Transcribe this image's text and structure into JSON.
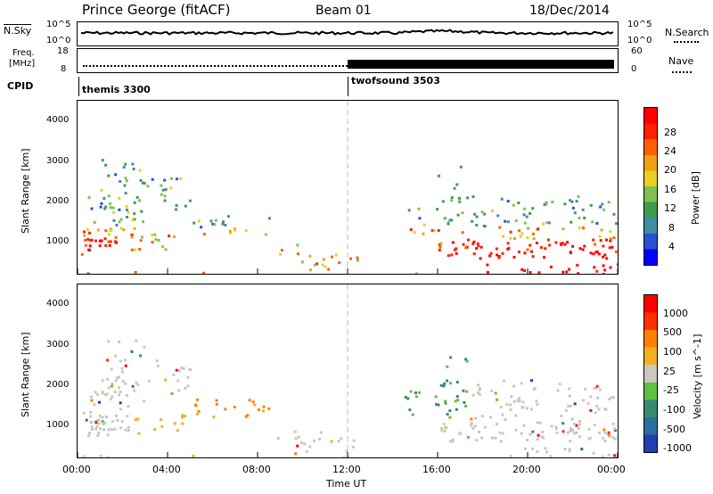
{
  "header": {
    "station": "Prince George (fitACF)",
    "beam": "Beam 01",
    "date": "18/Dec/2014"
  },
  "nsky_panel": {
    "left_label": "N.Sky",
    "right_label": "N.Search",
    "left_ticks": [
      "10^5",
      "10^0"
    ],
    "right_ticks": [
      "10^5",
      "10^0"
    ]
  },
  "freq_panel": {
    "left_label_line1": "Freq.",
    "left_label_line2": "[MHz]",
    "right_label": "Nave",
    "left_ticks": [
      "18",
      "8"
    ],
    "right_ticks": [
      "60",
      "0"
    ]
  },
  "cpid": {
    "label": "CPID",
    "modes": [
      {
        "name": "themis 3300",
        "start_hour": 0
      },
      {
        "name": "twofsound 3503",
        "start_hour": 12
      }
    ]
  },
  "time_axis": {
    "label": "Time UT",
    "ticks": [
      "00:00",
      "04:00",
      "08:00",
      "12:00",
      "16:00",
      "20:00",
      "00:00"
    ]
  },
  "chart_data": [
    {
      "type": "heatmap",
      "name": "power",
      "ylabel": "Slant Range [km]",
      "yticks": [
        "4000",
        "3000",
        "2000",
        "1000"
      ],
      "x_range_hours": [
        0,
        24
      ],
      "y_range_km": [
        180,
        4600
      ],
      "colorbar": {
        "label": "Power [dB]",
        "ticks": [
          "28",
          "24",
          "20",
          "16",
          "12",
          "8",
          "4"
        ],
        "colors": [
          "#0000ff",
          "#2a4fd0",
          "#3f8fa0",
          "#3f9a50",
          "#80c050",
          "#e8d020",
          "#f0a010",
          "#ff6000",
          "#ff2000",
          "#ff0000"
        ]
      }
    },
    {
      "type": "heatmap",
      "name": "velocity",
      "ylabel": "Slant Range [km]",
      "yticks": [
        "4000",
        "3000",
        "2000",
        "1000"
      ],
      "x_range_hours": [
        0,
        24
      ],
      "y_range_km": [
        180,
        4600
      ],
      "colorbar": {
        "label": "Velocity [m s^-1]",
        "ticks": [
          "1000",
          "500",
          "100",
          "25",
          "-25",
          "-100",
          "-500",
          "-1000"
        ],
        "colors": [
          "#2040b0",
          "#2d6ea0",
          "#3a8a70",
          "#60c040",
          "#c8c8c0",
          "#f0b020",
          "#ff8000",
          "#ff3000",
          "#ff0000"
        ]
      }
    }
  ]
}
